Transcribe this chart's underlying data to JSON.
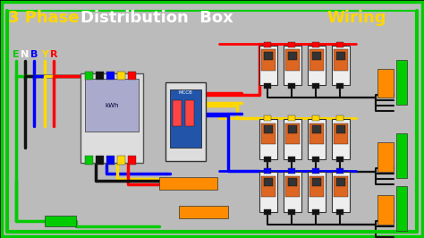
{
  "title_parts": [
    {
      "text": "3 Phase",
      "color": "#FFD700",
      "weight": "bold"
    },
    {
      "text": " Distribution  Box ",
      "color": "#FFFFFF",
      "weight": "bold"
    },
    {
      "text": "Wiring",
      "color": "#FFD700",
      "weight": "bold"
    }
  ],
  "bg_color": "#000000",
  "diagram_bg": "#CCCCCC",
  "wire_colors": {
    "green": "#00CC00",
    "black": "#111111",
    "blue": "#0000FF",
    "yellow": "#FFD700",
    "red": "#FF0000",
    "orange": "#FF8C00"
  },
  "label_colors": {
    "E": "#00CC00",
    "N": "#FFFFFF",
    "B": "#0000FF",
    "Y": "#FFD700",
    "R": "#FF0000"
  }
}
